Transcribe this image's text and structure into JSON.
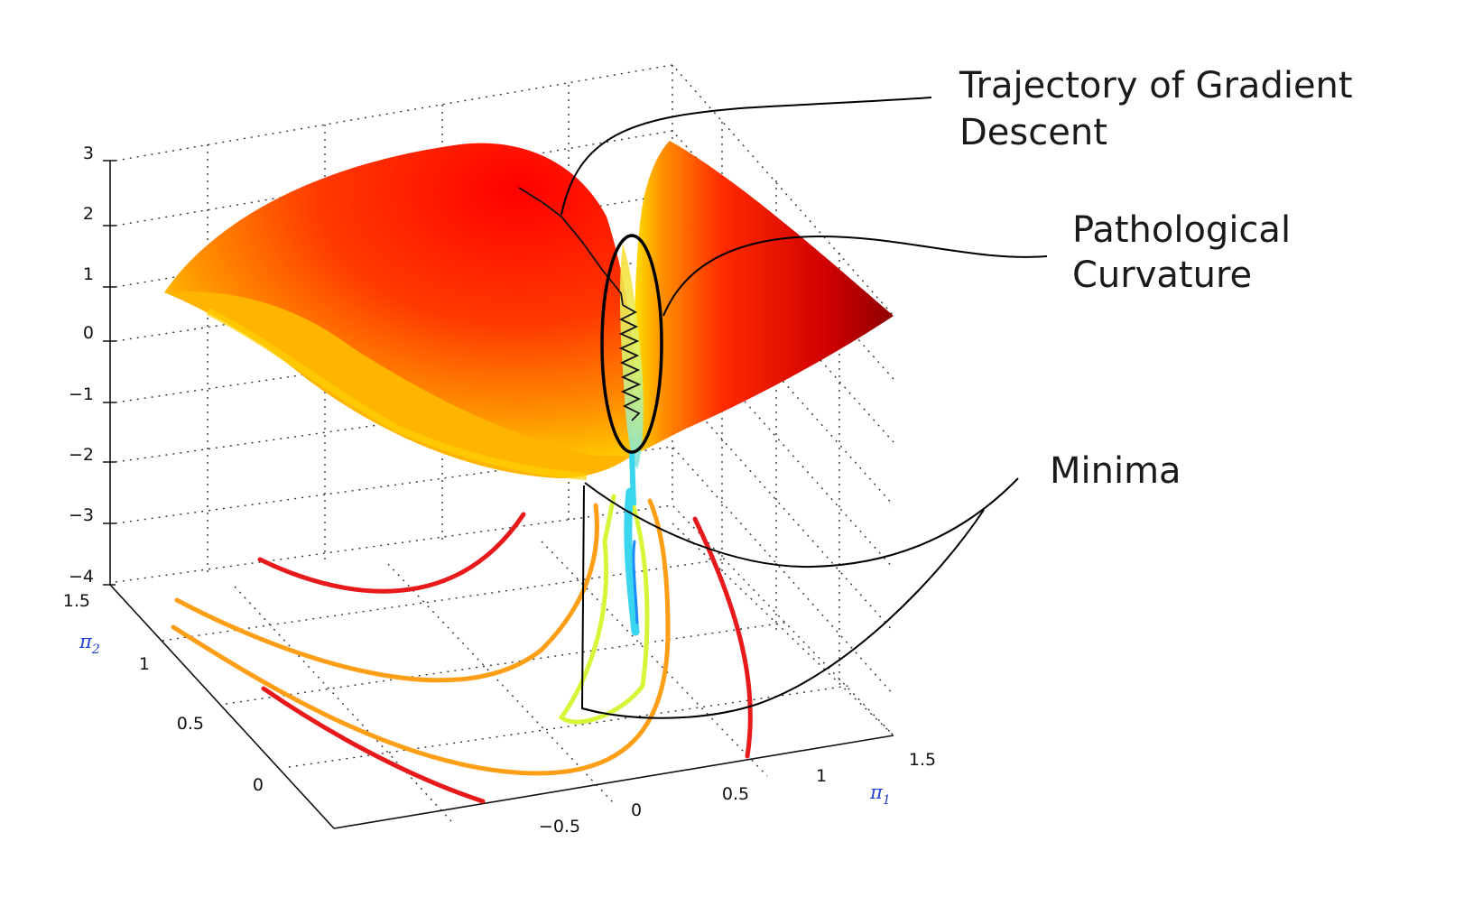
{
  "annotations": {
    "trajectory_line1": "Trajectory of Gradient",
    "trajectory_line2": "Descent",
    "pathological_line1": "Pathological",
    "pathological_line2": "Curvature",
    "minima": "Minima"
  },
  "axes": {
    "z_ticks": [
      "3",
      "2",
      "1",
      "0",
      "−1",
      "−2",
      "−3",
      "−4"
    ],
    "x2_ticks": [
      "1.5",
      "1",
      "0.5",
      "0"
    ],
    "x1_ticks": [
      "−0.5",
      "0",
      "0.5",
      "1",
      "1.5"
    ],
    "x1_label": "π",
    "x1_sub": "1",
    "x2_label": "π",
    "x2_sub": "2"
  },
  "colors": {
    "surface_high": "#b00000",
    "surface_mid": "#ff2a00",
    "surface_low": "#ffee00",
    "contour_red": "#e8191b",
    "contour_orange": "#ff9e17",
    "contour_yellow": "#d8f53a",
    "contour_cyan": "#39d6ee",
    "annotation_text": "#1a1a1a",
    "axis_label": "#1f3fd6"
  }
}
